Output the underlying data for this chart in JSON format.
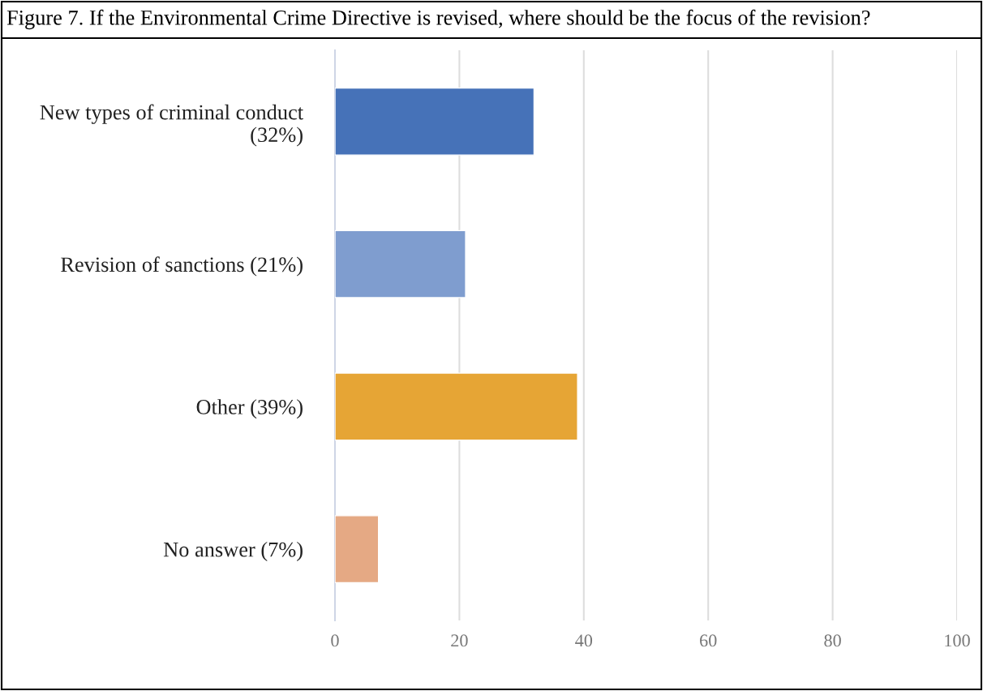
{
  "chart_data": {
    "type": "bar",
    "orientation": "horizontal",
    "title": "Figure 7. If the Environmental Crime Directive is revised, where should be the focus of the revision?",
    "categories": [
      "New types of criminal conduct\n(32%)",
      "Revision of sanctions (21%)",
      "Other (39%)",
      "No answer (7%)"
    ],
    "values": [
      32,
      21,
      39,
      7
    ],
    "colors": [
      "#4672b8",
      "#7f9dcf",
      "#e6a535",
      "#e5a984"
    ],
    "xlim": [
      0,
      100
    ],
    "xticks": [
      0,
      20,
      40,
      60,
      80,
      100
    ],
    "grid": "x"
  }
}
